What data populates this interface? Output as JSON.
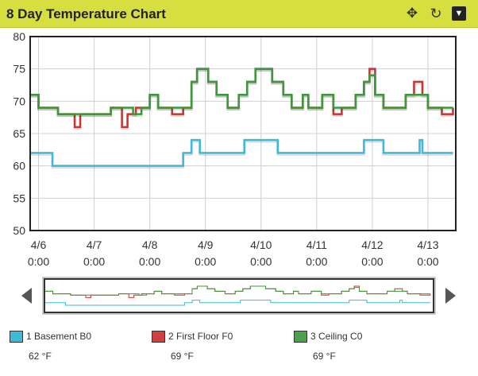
{
  "header": {
    "title": "8 Day Temperature Chart",
    "icons": [
      "move-icon",
      "refresh-icon",
      "menu-dropdown-icon"
    ]
  },
  "chart_data": {
    "type": "line",
    "title": "8 Day Temperature Chart",
    "xlabel": "",
    "ylabel": "",
    "ylim": [
      50,
      80
    ],
    "yticks": [
      50,
      55,
      60,
      65,
      70,
      75,
      80
    ],
    "x_range": [
      -0.15,
      7.5
    ],
    "x_tick_labels": [
      {
        "x": 0,
        "date": "4/6",
        "time": "0:00"
      },
      {
        "x": 1,
        "date": "4/7",
        "time": "0:00"
      },
      {
        "x": 2,
        "date": "4/8",
        "time": "0:00"
      },
      {
        "x": 3,
        "date": "4/9",
        "time": "0:00"
      },
      {
        "x": 4,
        "date": "4/10",
        "time": "0:00"
      },
      {
        "x": 5,
        "date": "4/11",
        "time": "0:00"
      },
      {
        "x": 6,
        "date": "4/12",
        "time": "0:00"
      },
      {
        "x": 7,
        "date": "4/13",
        "time": "0:00"
      }
    ],
    "grid": true,
    "series": [
      {
        "name": "1 Basement B0",
        "color": "#3cbad6",
        "step": [
          [
            -0.15,
            62
          ],
          [
            0.25,
            60
          ],
          [
            2.6,
            62
          ],
          [
            2.75,
            64
          ],
          [
            2.9,
            62
          ],
          [
            3.7,
            64
          ],
          [
            4.3,
            62
          ],
          [
            5.85,
            64
          ],
          [
            6.2,
            62
          ],
          [
            6.85,
            64
          ],
          [
            6.9,
            62
          ],
          [
            7.45,
            62
          ]
        ]
      },
      {
        "name": "2 First Floor F0",
        "color": "#cc3333",
        "step": [
          [
            -0.15,
            71
          ],
          [
            0,
            69
          ],
          [
            0.35,
            68
          ],
          [
            0.65,
            66
          ],
          [
            0.75,
            68
          ],
          [
            1.0,
            68
          ],
          [
            1.3,
            69
          ],
          [
            1.5,
            66
          ],
          [
            1.6,
            68
          ],
          [
            1.75,
            69
          ],
          [
            2.0,
            71
          ],
          [
            2.15,
            69
          ],
          [
            2.4,
            68
          ],
          [
            2.6,
            69
          ],
          [
            2.75,
            73
          ],
          [
            2.85,
            75
          ],
          [
            3.05,
            73
          ],
          [
            3.2,
            71
          ],
          [
            3.4,
            69
          ],
          [
            3.6,
            71
          ],
          [
            3.75,
            73
          ],
          [
            3.9,
            75
          ],
          [
            4.2,
            73
          ],
          [
            4.4,
            71
          ],
          [
            4.55,
            69
          ],
          [
            4.75,
            71
          ],
          [
            4.85,
            69
          ],
          [
            5.1,
            71
          ],
          [
            5.3,
            68
          ],
          [
            5.45,
            69
          ],
          [
            5.7,
            71
          ],
          [
            5.85,
            73
          ],
          [
            5.95,
            75
          ],
          [
            6.05,
            71
          ],
          [
            6.2,
            69
          ],
          [
            6.6,
            71
          ],
          [
            6.75,
            73
          ],
          [
            6.9,
            71
          ],
          [
            7.0,
            69
          ],
          [
            7.25,
            68
          ],
          [
            7.45,
            69
          ]
        ]
      },
      {
        "name": "3 Ceiling C0",
        "color": "#3a9a3a",
        "step": [
          [
            -0.15,
            71
          ],
          [
            0,
            69
          ],
          [
            0.35,
            68
          ],
          [
            1.0,
            68
          ],
          [
            1.3,
            69
          ],
          [
            1.7,
            68
          ],
          [
            1.85,
            69
          ],
          [
            2.0,
            71
          ],
          [
            2.15,
            69
          ],
          [
            2.6,
            69
          ],
          [
            2.75,
            73
          ],
          [
            2.85,
            75
          ],
          [
            3.05,
            73
          ],
          [
            3.2,
            71
          ],
          [
            3.4,
            69
          ],
          [
            3.6,
            71
          ],
          [
            3.75,
            73
          ],
          [
            3.9,
            75
          ],
          [
            4.2,
            73
          ],
          [
            4.4,
            71
          ],
          [
            4.55,
            69
          ],
          [
            4.75,
            71
          ],
          [
            4.85,
            69
          ],
          [
            5.1,
            71
          ],
          [
            5.3,
            69
          ],
          [
            5.7,
            71
          ],
          [
            5.85,
            73
          ],
          [
            5.95,
            74
          ],
          [
            6.05,
            71
          ],
          [
            6.2,
            69
          ],
          [
            6.6,
            71
          ],
          [
            6.75,
            71
          ],
          [
            6.9,
            71
          ],
          [
            7.0,
            69
          ],
          [
            7.45,
            69
          ]
        ]
      }
    ]
  },
  "legend": [
    {
      "label": "1 Basement B0",
      "value": "62 °F",
      "color": "#3cbad6"
    },
    {
      "label": "2 First Floor F0",
      "value": "69 °F",
      "color": "#d04040"
    },
    {
      "label": "3 Ceiling C0",
      "value": "69 °F",
      "color": "#4aa34a"
    }
  ]
}
